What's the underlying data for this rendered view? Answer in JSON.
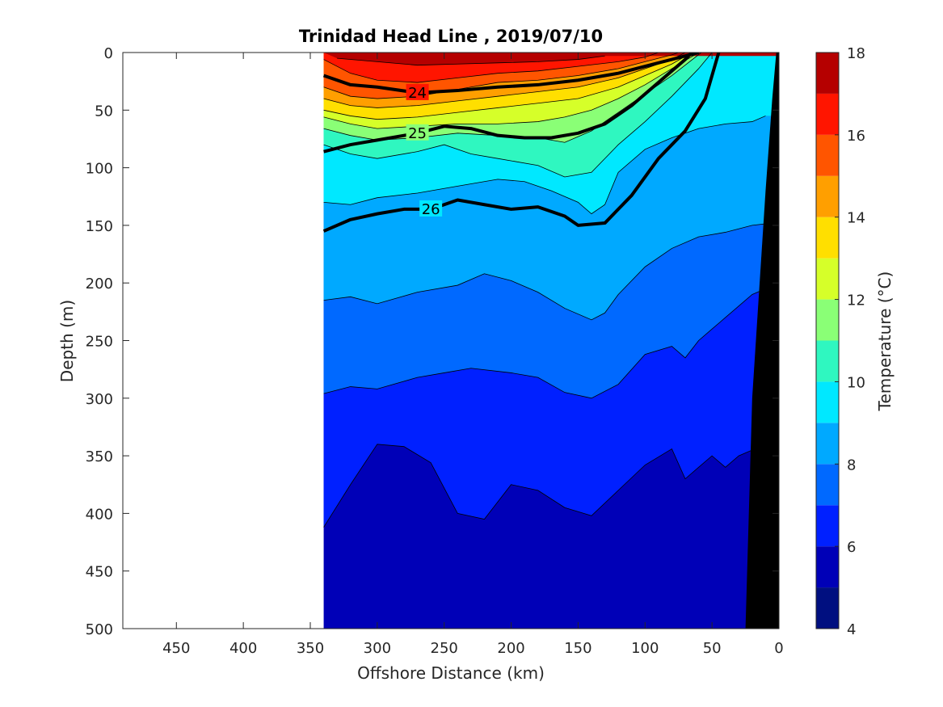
{
  "chart_data": {
    "type": "heatmap",
    "title": "Trinidad Head Line , 2019/07/10",
    "xlabel": "Offshore Distance (km)",
    "ylabel": "Depth (m)",
    "colorbar_label": "Temperature (°C)",
    "xlim": [
      490,
      0
    ],
    "ylim": [
      500,
      0
    ],
    "x_ticks": [
      450,
      400,
      350,
      300,
      250,
      200,
      150,
      100,
      50,
      0
    ],
    "y_ticks": [
      0,
      50,
      100,
      150,
      200,
      250,
      300,
      350,
      400,
      450,
      500
    ],
    "colorbar_ticks": [
      4,
      6,
      8,
      10,
      12,
      14,
      16,
      18
    ],
    "color_levels": [
      {
        "min": 4,
        "max": 5,
        "color": "#000f80"
      },
      {
        "min": 5,
        "max": 6,
        "color": "#0000b7"
      },
      {
        "min": 6,
        "max": 7,
        "color": "#0020ff"
      },
      {
        "min": 7,
        "max": 8,
        "color": "#0069ff"
      },
      {
        "min": 8,
        "max": 9,
        "color": "#00a9ff"
      },
      {
        "min": 9,
        "max": 10,
        "color": "#00e8ff"
      },
      {
        "min": 10,
        "max": 11,
        "color": "#2ff7c0"
      },
      {
        "min": 11,
        "max": 12,
        "color": "#8aff76"
      },
      {
        "min": 12,
        "max": 13,
        "color": "#d6ff29"
      },
      {
        "min": 13,
        "max": 14,
        "color": "#ffdf00"
      },
      {
        "min": 14,
        "max": 15,
        "color": "#ff9f00"
      },
      {
        "min": 15,
        "max": 16,
        "color": "#ff5500"
      },
      {
        "min": 16,
        "max": 17,
        "color": "#ff1500"
      },
      {
        "min": 17,
        "max": 18,
        "color": "#b50000"
      }
    ],
    "data_extent_x": [
      340,
      0
    ],
    "isotherm_boundaries": [
      {
        "temp": 17,
        "points": [
          [
            330,
            5
          ],
          [
            300,
            8
          ],
          [
            270,
            11
          ],
          [
            240,
            10
          ],
          [
            210,
            9
          ],
          [
            180,
            8
          ],
          [
            150,
            6
          ],
          [
            130,
            3
          ]
        ]
      },
      {
        "temp": 16,
        "points": [
          [
            340,
            6
          ],
          [
            320,
            18
          ],
          [
            300,
            24
          ],
          [
            270,
            26
          ],
          [
            240,
            22
          ],
          [
            210,
            18
          ],
          [
            180,
            16
          ],
          [
            150,
            12
          ],
          [
            120,
            8
          ],
          [
            100,
            4
          ],
          [
            90,
            0
          ]
        ]
      },
      {
        "temp": 15,
        "points": [
          [
            340,
            30
          ],
          [
            320,
            38
          ],
          [
            300,
            40
          ],
          [
            270,
            38
          ],
          [
            240,
            32
          ],
          [
            210,
            26
          ],
          [
            180,
            24
          ],
          [
            150,
            20
          ],
          [
            120,
            14
          ],
          [
            100,
            8
          ],
          [
            80,
            2
          ],
          [
            75,
            0
          ]
        ]
      },
      {
        "temp": 14,
        "points": [
          [
            340,
            40
          ],
          [
            320,
            46
          ],
          [
            300,
            48
          ],
          [
            270,
            46
          ],
          [
            240,
            42
          ],
          [
            210,
            38
          ],
          [
            180,
            34
          ],
          [
            150,
            30
          ],
          [
            120,
            22
          ],
          [
            100,
            14
          ],
          [
            80,
            6
          ],
          [
            70,
            0
          ]
        ]
      },
      {
        "temp": 13,
        "points": [
          [
            340,
            50
          ],
          [
            320,
            55
          ],
          [
            300,
            58
          ],
          [
            270,
            56
          ],
          [
            240,
            52
          ],
          [
            210,
            48
          ],
          [
            180,
            44
          ],
          [
            150,
            40
          ],
          [
            120,
            30
          ],
          [
            100,
            20
          ],
          [
            80,
            10
          ],
          [
            65,
            0
          ]
        ]
      },
      {
        "temp": 12,
        "points": [
          [
            340,
            56
          ],
          [
            320,
            62
          ],
          [
            300,
            66
          ],
          [
            270,
            64
          ],
          [
            240,
            62
          ],
          [
            210,
            62
          ],
          [
            180,
            60
          ],
          [
            160,
            56
          ],
          [
            140,
            50
          ],
          [
            120,
            40
          ],
          [
            100,
            28
          ],
          [
            80,
            14
          ],
          [
            60,
            0
          ]
        ]
      },
      {
        "temp": 11,
        "points": [
          [
            340,
            66
          ],
          [
            320,
            72
          ],
          [
            300,
            76
          ],
          [
            270,
            74
          ],
          [
            240,
            70
          ],
          [
            210,
            72
          ],
          [
            180,
            74
          ],
          [
            160,
            78
          ],
          [
            140,
            68
          ],
          [
            120,
            52
          ],
          [
            100,
            36
          ],
          [
            80,
            20
          ],
          [
            58,
            0
          ]
        ]
      },
      {
        "temp": 10,
        "points": [
          [
            340,
            80
          ],
          [
            320,
            88
          ],
          [
            300,
            92
          ],
          [
            270,
            86
          ],
          [
            250,
            80
          ],
          [
            230,
            88
          ],
          [
            210,
            92
          ],
          [
            180,
            98
          ],
          [
            160,
            108
          ],
          [
            140,
            104
          ],
          [
            120,
            80
          ],
          [
            100,
            60
          ],
          [
            80,
            38
          ],
          [
            60,
            14
          ],
          [
            50,
            0
          ]
        ]
      },
      {
        "temp": 9,
        "points": [
          [
            340,
            130
          ],
          [
            320,
            132
          ],
          [
            300,
            126
          ],
          [
            270,
            122
          ],
          [
            240,
            116
          ],
          [
            210,
            110
          ],
          [
            190,
            112
          ],
          [
            170,
            120
          ],
          [
            150,
            130
          ],
          [
            140,
            140
          ],
          [
            130,
            132
          ],
          [
            120,
            104
          ],
          [
            100,
            84
          ],
          [
            80,
            74
          ],
          [
            60,
            66
          ],
          [
            40,
            62
          ],
          [
            20,
            60
          ],
          [
            10,
            55
          ]
        ]
      },
      {
        "temp": 8,
        "points": [
          [
            340,
            215
          ],
          [
            320,
            212
          ],
          [
            300,
            218
          ],
          [
            270,
            208
          ],
          [
            240,
            202
          ],
          [
            220,
            192
          ],
          [
            200,
            198
          ],
          [
            180,
            208
          ],
          [
            160,
            222
          ],
          [
            140,
            232
          ],
          [
            130,
            226
          ],
          [
            120,
            210
          ],
          [
            100,
            186
          ],
          [
            80,
            170
          ],
          [
            60,
            160
          ],
          [
            40,
            156
          ],
          [
            20,
            150
          ],
          [
            5,
            148
          ]
        ]
      },
      {
        "temp": 7,
        "points": [
          [
            340,
            296
          ],
          [
            320,
            290
          ],
          [
            300,
            292
          ],
          [
            270,
            282
          ],
          [
            250,
            278
          ],
          [
            230,
            274
          ],
          [
            200,
            278
          ],
          [
            180,
            282
          ],
          [
            160,
            295
          ],
          [
            140,
            300
          ],
          [
            120,
            288
          ],
          [
            100,
            262
          ],
          [
            80,
            255
          ],
          [
            70,
            265
          ],
          [
            60,
            250
          ],
          [
            50,
            240
          ],
          [
            40,
            230
          ],
          [
            30,
            220
          ],
          [
            20,
            210
          ],
          [
            10,
            205
          ]
        ]
      },
      {
        "temp": 6,
        "points": [
          [
            340,
            412
          ],
          [
            320,
            375
          ],
          [
            300,
            340
          ],
          [
            280,
            342
          ],
          [
            260,
            356
          ],
          [
            240,
            400
          ],
          [
            220,
            405
          ],
          [
            200,
            375
          ],
          [
            180,
            380
          ],
          [
            160,
            395
          ],
          [
            140,
            402
          ],
          [
            120,
            380
          ],
          [
            100,
            358
          ],
          [
            80,
            344
          ],
          [
            70,
            370
          ],
          [
            60,
            360
          ],
          [
            50,
            350
          ],
          [
            40,
            360
          ],
          [
            30,
            350
          ],
          [
            20,
            345
          ]
        ]
      }
    ],
    "density_contours": [
      {
        "label": "24",
        "points": [
          [
            340,
            20
          ],
          [
            320,
            28
          ],
          [
            300,
            30
          ],
          [
            270,
            35
          ],
          [
            240,
            33
          ],
          [
            210,
            30
          ],
          [
            180,
            28
          ],
          [
            150,
            24
          ],
          [
            120,
            18
          ],
          [
            100,
            12
          ],
          [
            80,
            6
          ],
          [
            60,
            0
          ]
        ],
        "bold": true
      },
      {
        "label": "25",
        "points": [
          [
            340,
            86
          ],
          [
            320,
            80
          ],
          [
            300,
            76
          ],
          [
            270,
            70
          ],
          [
            250,
            64
          ],
          [
            230,
            66
          ],
          [
            210,
            72
          ],
          [
            190,
            74
          ],
          [
            170,
            74
          ],
          [
            150,
            70
          ],
          [
            130,
            62
          ],
          [
            110,
            46
          ],
          [
            90,
            26
          ],
          [
            70,
            6
          ],
          [
            65,
            0
          ]
        ],
        "bold": true
      },
      {
        "label": "26",
        "points": [
          [
            340,
            155
          ],
          [
            320,
            145
          ],
          [
            300,
            140
          ],
          [
            280,
            136
          ],
          [
            260,
            136
          ],
          [
            240,
            128
          ],
          [
            220,
            132
          ],
          [
            200,
            136
          ],
          [
            180,
            134
          ],
          [
            160,
            142
          ],
          [
            150,
            150
          ],
          [
            130,
            148
          ],
          [
            110,
            124
          ],
          [
            90,
            92
          ],
          [
            70,
            68
          ],
          [
            55,
            40
          ],
          [
            45,
            0
          ]
        ],
        "bold": true
      }
    ]
  }
}
